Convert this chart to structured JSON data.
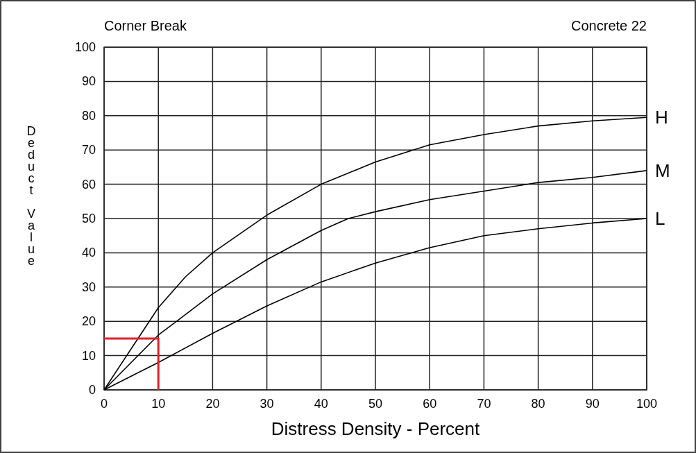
{
  "chart_data": {
    "type": "line",
    "title": "Corner Break",
    "subtitle": "Concrete 22",
    "xlabel": "Distress Density - Percent",
    "ylabel": "Deduct Value",
    "xlim": [
      0,
      100
    ],
    "ylim": [
      0,
      100
    ],
    "xticks": [
      0,
      10,
      20,
      30,
      40,
      50,
      60,
      70,
      80,
      90,
      100
    ],
    "yticks": [
      0,
      10,
      20,
      30,
      40,
      50,
      60,
      70,
      80,
      90,
      100
    ],
    "grid": true,
    "marker": "none",
    "line_style": "solid",
    "series": [
      {
        "name": "H",
        "color": "#000000",
        "x": [
          0,
          5,
          10,
          15,
          20,
          30,
          40,
          50,
          60,
          70,
          80,
          90,
          100
        ],
        "values": [
          0,
          12,
          24,
          33,
          40,
          51,
          60,
          66.5,
          71.5,
          74.5,
          77,
          78.5,
          79.5
        ]
      },
      {
        "name": "M",
        "color": "#000000",
        "x": [
          0,
          5,
          10,
          20,
          30,
          40,
          45,
          50,
          60,
          70,
          80,
          90,
          100
        ],
        "values": [
          0,
          8,
          16,
          28,
          38,
          46.5,
          50,
          52,
          55.5,
          58,
          60.5,
          62,
          64
        ]
      },
      {
        "name": "L",
        "color": "#000000",
        "x": [
          0,
          10,
          20,
          30,
          40,
          50,
          60,
          70,
          80,
          90,
          100
        ],
        "values": [
          0,
          8,
          16.5,
          24.5,
          31.5,
          37,
          41.5,
          45,
          47,
          48.7,
          50
        ]
      },
      {
        "color": "#e0202a",
        "x": [
          0,
          10,
          10
        ],
        "values": [
          15,
          15,
          0
        ]
      }
    ]
  }
}
